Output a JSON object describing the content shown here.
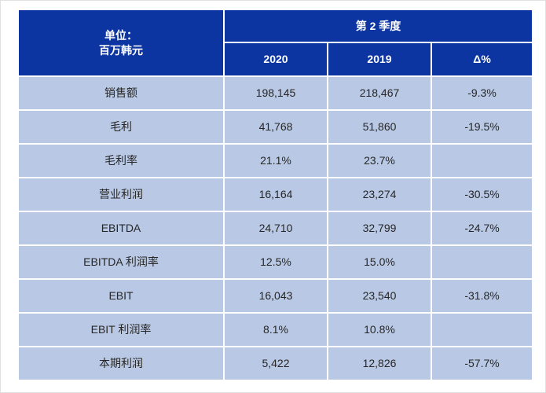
{
  "colors": {
    "header_bg": "#0C35A2",
    "row_bg": "#B9C9E5",
    "header_text": "#FFFFFF",
    "body_text": "#262626",
    "grid_line": "#FFFFFF"
  },
  "table": {
    "unit_label_line1": "单位：",
    "unit_label_line2": "百万韩元",
    "quarter_header": "第 2 季度",
    "col_headers": [
      "2020",
      "2019",
      "Δ%"
    ],
    "rows": [
      {
        "label": "销售额",
        "v2020": "198,145",
        "v2019": "218,467",
        "delta": "-9.3%"
      },
      {
        "label": "毛利",
        "v2020": "41,768",
        "v2019": "51,860",
        "delta": "-19.5%"
      },
      {
        "label": "毛利率",
        "v2020": "21.1%",
        "v2019": "23.7%",
        "delta": ""
      },
      {
        "label": "营业利润",
        "v2020": "16,164",
        "v2019": "23,274",
        "delta": "-30.5%"
      },
      {
        "label": "EBITDA",
        "v2020": "24,710",
        "v2019": "32,799",
        "delta": "-24.7%"
      },
      {
        "label": "EBITDA 利润率",
        "v2020": "12.5%",
        "v2019": "15.0%",
        "delta": ""
      },
      {
        "label": "EBIT",
        "v2020": "16,043",
        "v2019": "23,540",
        "delta": "-31.8%"
      },
      {
        "label": "EBIT 利润率",
        "v2020": "8.1%",
        "v2019": "10.8%",
        "delta": ""
      },
      {
        "label": "本期利润",
        "v2020": "5,422",
        "v2019": "12,826",
        "delta": "-57.7%"
      }
    ]
  }
}
